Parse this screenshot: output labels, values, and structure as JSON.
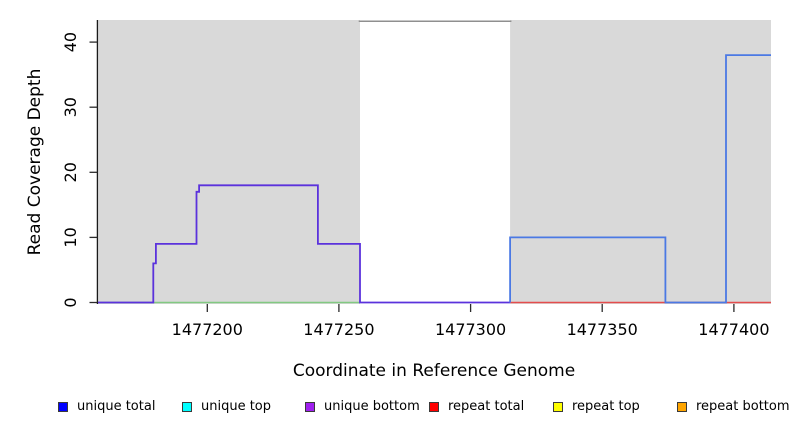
{
  "chart_data": {
    "type": "line",
    "title": "",
    "xlabel": "Coordinate in Reference Genome",
    "ylabel": "Read Coverage Depth",
    "xlim": [
      1477158.5,
      1477414.1
    ],
    "ylim": [
      0,
      43.4
    ],
    "x_ticks": [
      1477200,
      1477250,
      1477300,
      1477350,
      1477400
    ],
    "y_ticks": [
      0,
      10,
      20,
      30,
      40
    ],
    "grid": false,
    "legend_position": "bottom",
    "background_regions": [
      {
        "name": "unique-region-left",
        "x0": 1477158.5,
        "x1": 1477258,
        "color": "#d9d9d9"
      },
      {
        "name": "repeat-region-gap",
        "x0": 1477258,
        "x1": 1477315,
        "color": "#ffffff"
      },
      {
        "name": "unique-region-right",
        "x0": 1477315,
        "x1": 1477414.1,
        "color": "#d9d9d9"
      }
    ],
    "series": [
      {
        "name": "green-baseline",
        "color": "#82c982",
        "width": 1.6,
        "points": [
          [
            1477158.5,
            0
          ],
          [
            1477258,
            0
          ]
        ]
      },
      {
        "name": "red-baseline",
        "color": "#e44d4d",
        "width": 1.6,
        "points": [
          [
            1477315,
            0
          ],
          [
            1477414.1,
            0
          ]
        ]
      },
      {
        "name": "unique-bottom-steps",
        "color": "#5b32dc",
        "width": 1.8,
        "points": [
          [
            1477158.5,
            0
          ],
          [
            1477179.5,
            0
          ],
          [
            1477179.5,
            6
          ],
          [
            1477180.5,
            6
          ],
          [
            1477180.5,
            9
          ],
          [
            1477195.9,
            9
          ],
          [
            1477195.9,
            17
          ],
          [
            1477196.9,
            17
          ],
          [
            1477196.9,
            18
          ],
          [
            1477242,
            18
          ],
          [
            1477242,
            9
          ],
          [
            1477258,
            9
          ],
          [
            1477258,
            0
          ],
          [
            1477315,
            0
          ]
        ]
      },
      {
        "name": "unique-total-right",
        "color": "#4b79e4",
        "width": 1.8,
        "points": [
          [
            1477315,
            0
          ],
          [
            1477315,
            10
          ],
          [
            1477374,
            10
          ],
          [
            1477374,
            0
          ],
          [
            1477397,
            0
          ],
          [
            1477397,
            38
          ],
          [
            1477414.1,
            38
          ]
        ]
      },
      {
        "name": "clipped-depth-line",
        "color": "#8f8f8f",
        "width": 1.5,
        "points": [
          [
            1477257.5,
            43.2
          ],
          [
            1477315.5,
            43.2
          ]
        ]
      }
    ],
    "legend": [
      {
        "label": "unique total",
        "color": "#0000ff"
      },
      {
        "label": "unique top",
        "color": "#00ffff"
      },
      {
        "label": "unique bottom",
        "color": "#a020f0"
      },
      {
        "label": "repeat total",
        "color": "#ff0000"
      },
      {
        "label": "repeat top",
        "color": "#ffff00"
      },
      {
        "label": "repeat bottom",
        "color": "#ffa500"
      }
    ]
  }
}
